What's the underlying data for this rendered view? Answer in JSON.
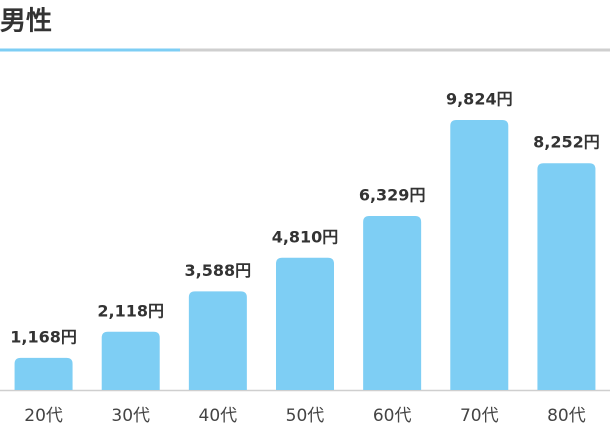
{
  "chart_data": {
    "type": "bar",
    "title": "男性",
    "categories": [
      "20代",
      "30代",
      "40代",
      "50代",
      "60代",
      "70代",
      "80代"
    ],
    "values": [
      1168,
      2118,
      3588,
      4810,
      6329,
      9824,
      8252
    ],
    "value_labels": [
      "1,168円",
      "2,118円",
      "3,588円",
      "4,810円",
      "6,329円",
      "9,824円",
      "8,252円"
    ],
    "color": "#7ecef4"
  }
}
